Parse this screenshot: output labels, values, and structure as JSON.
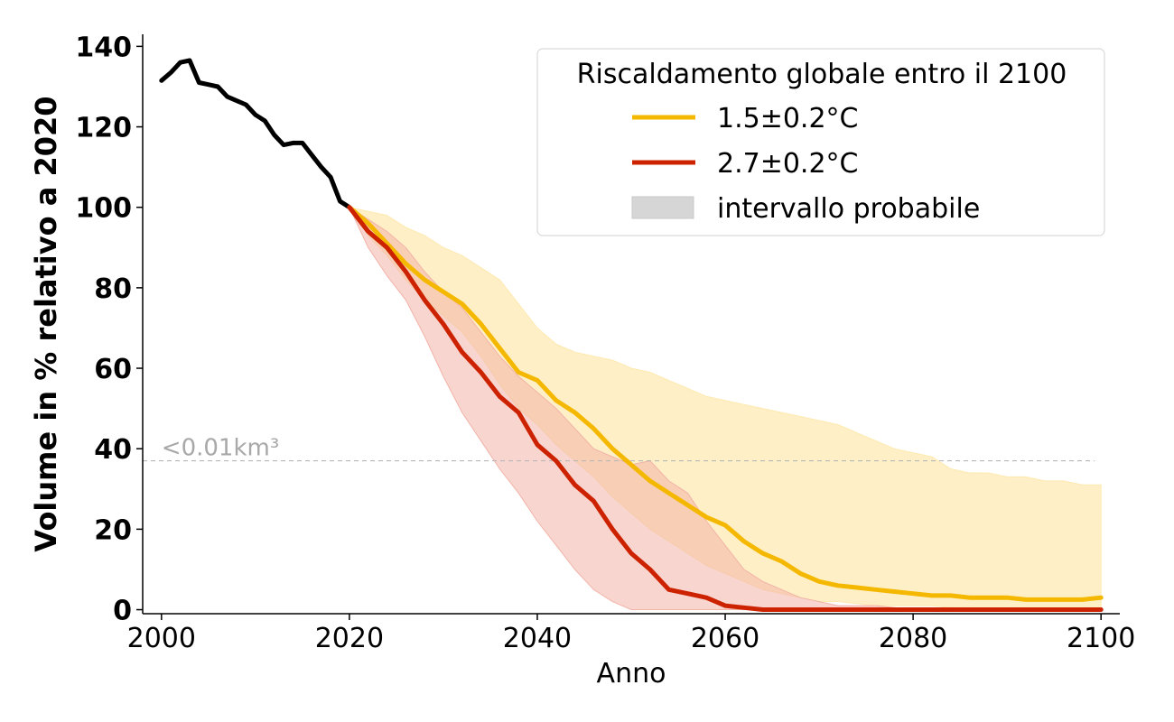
{
  "chart_data": {
    "type": "line",
    "title": "",
    "xlabel": "Anno",
    "ylabel": "Volume in % relativo a 2020",
    "xlim": [
      1998,
      2102
    ],
    "ylim": [
      -1,
      143
    ],
    "x_ticks": [
      "2000",
      "2020",
      "2040",
      "2060",
      "2080",
      "2100"
    ],
    "y_ticks": [
      "0",
      "20",
      "40",
      "60",
      "80",
      "100",
      "120",
      "140"
    ],
    "grid": false,
    "legend": {
      "title": "Riscaldamento globale entro il 2100",
      "position": "top-right",
      "entries": [
        "1.5±0.2°C",
        "2.7±0.2°C",
        "intervallo probabile"
      ]
    },
    "reference_line": {
      "y": 37,
      "label": "<0.01km³",
      "color": "#b0b0b0"
    },
    "observed": {
      "color": "#000000",
      "x": [
        2000,
        2001,
        2002,
        2003,
        2004,
        2005,
        2006,
        2007,
        2008,
        2009,
        2010,
        2011,
        2012,
        2013,
        2014,
        2015,
        2016,
        2017,
        2018,
        2019,
        2020
      ],
      "y": [
        131.5,
        133.5,
        136,
        136.5,
        131,
        130.5,
        130,
        127.5,
        126.5,
        125.5,
        123,
        121.5,
        118,
        115.5,
        116,
        116,
        113,
        110,
        107.5,
        101.5,
        100
      ]
    },
    "series": [
      {
        "name": "1.5±0.2°C",
        "color": "#f5b800",
        "band_color": "#fde9b0",
        "x": [
          2020,
          2022,
          2024,
          2026,
          2028,
          2030,
          2032,
          2034,
          2036,
          2038,
          2040,
          2042,
          2044,
          2046,
          2048,
          2050,
          2052,
          2054,
          2056,
          2058,
          2060,
          2062,
          2064,
          2066,
          2068,
          2070,
          2072,
          2074,
          2076,
          2078,
          2080,
          2082,
          2084,
          2086,
          2088,
          2090,
          2092,
          2094,
          2096,
          2098,
          2100
        ],
        "y": [
          100,
          96,
          91,
          86,
          82,
          79,
          76,
          71,
          65,
          59,
          57,
          52,
          49,
          45,
          40,
          36,
          32,
          29,
          26,
          23,
          21,
          17,
          14,
          12,
          9,
          7,
          6,
          5.5,
          5,
          4.5,
          4,
          3.5,
          3.5,
          3,
          3,
          3,
          2.5,
          2.5,
          2.5,
          2.5,
          3
        ],
        "lower": [
          100,
          93,
          88,
          82,
          77,
          73,
          69,
          63,
          56,
          50,
          46,
          41,
          37,
          33,
          28,
          24,
          20,
          17,
          14,
          11,
          9,
          7,
          5,
          4,
          3,
          2,
          2,
          1.5,
          1,
          1,
          1,
          1,
          0.5,
          0.5,
          0.5,
          0.5,
          0.5,
          0.5,
          0.5,
          0.5,
          0.5
        ],
        "upper": [
          100,
          99,
          98,
          95,
          93,
          90,
          88,
          85,
          82,
          76,
          70,
          66,
          64,
          63,
          62,
          60,
          59,
          57,
          55,
          53,
          52,
          51,
          50,
          49,
          48,
          47,
          46,
          44,
          42,
          40,
          39,
          38,
          35,
          34,
          34,
          33,
          33,
          32,
          32,
          31,
          31
        ]
      },
      {
        "name": "2.7±0.2°C",
        "color": "#cc2200",
        "band_color": "#f2b3a8",
        "x": [
          2020,
          2022,
          2024,
          2026,
          2028,
          2030,
          2032,
          2034,
          2036,
          2038,
          2040,
          2042,
          2044,
          2046,
          2048,
          2050,
          2052,
          2054,
          2056,
          2058,
          2060,
          2062,
          2064,
          2066,
          2068,
          2070,
          2072,
          2074,
          2076,
          2078,
          2080,
          2082,
          2084,
          2086,
          2088,
          2090,
          2092,
          2094,
          2096,
          2098,
          2100
        ],
        "y": [
          100,
          94,
          90,
          84,
          77,
          71,
          64,
          59,
          53,
          49,
          41,
          37,
          31,
          27,
          20,
          14,
          10,
          5,
          4,
          3,
          1,
          0.5,
          0,
          0,
          0,
          0,
          0,
          0,
          0,
          0,
          0,
          0,
          0,
          0,
          0,
          0,
          0,
          0,
          0,
          0,
          0
        ],
        "lower": [
          100,
          90,
          83,
          77,
          68,
          58,
          49,
          42,
          35,
          29,
          22,
          16,
          10,
          5,
          2,
          0,
          0,
          0,
          0,
          0,
          0,
          0,
          0,
          0,
          0,
          0,
          0,
          0,
          0,
          0,
          0,
          0,
          0,
          0,
          0,
          0,
          0,
          0,
          0,
          0,
          0
        ],
        "upper": [
          100,
          97,
          94,
          90,
          84,
          79,
          75,
          69,
          63,
          58,
          54,
          50,
          45,
          40,
          38,
          36,
          37,
          32,
          29,
          22,
          16,
          10,
          7,
          5,
          3,
          2,
          1,
          1,
          1,
          0.5,
          0,
          0,
          0,
          0,
          0,
          0,
          0,
          0,
          0,
          0,
          0
        ]
      }
    ]
  }
}
